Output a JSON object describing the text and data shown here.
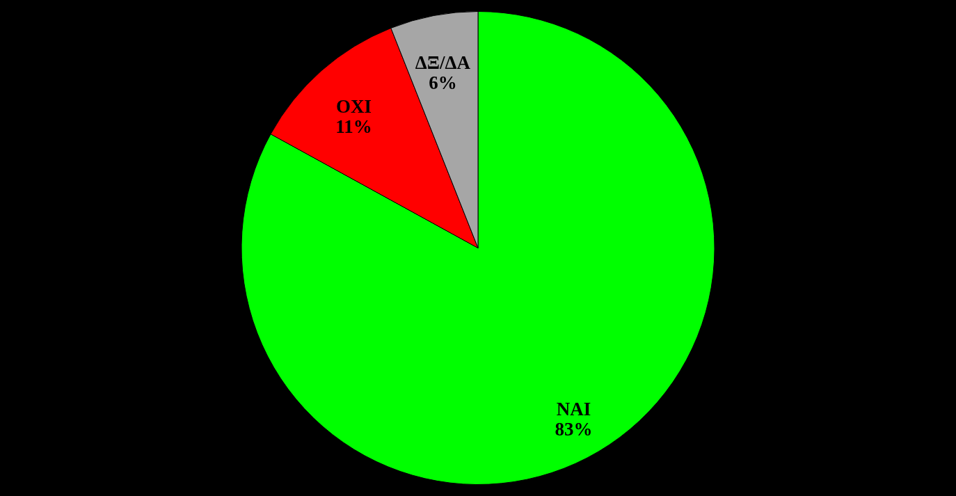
{
  "chart_data": {
    "type": "pie",
    "categories": [
      "ΝΑΙ",
      "ΟΧΙ",
      "ΔΞ/ΔΑ"
    ],
    "values": [
      83,
      11,
      6
    ],
    "colors": [
      "#00ff00",
      "#ff0000",
      "#a6a6a6"
    ],
    "value_labels": [
      "83%",
      "11%",
      "6%"
    ],
    "legend": false
  }
}
